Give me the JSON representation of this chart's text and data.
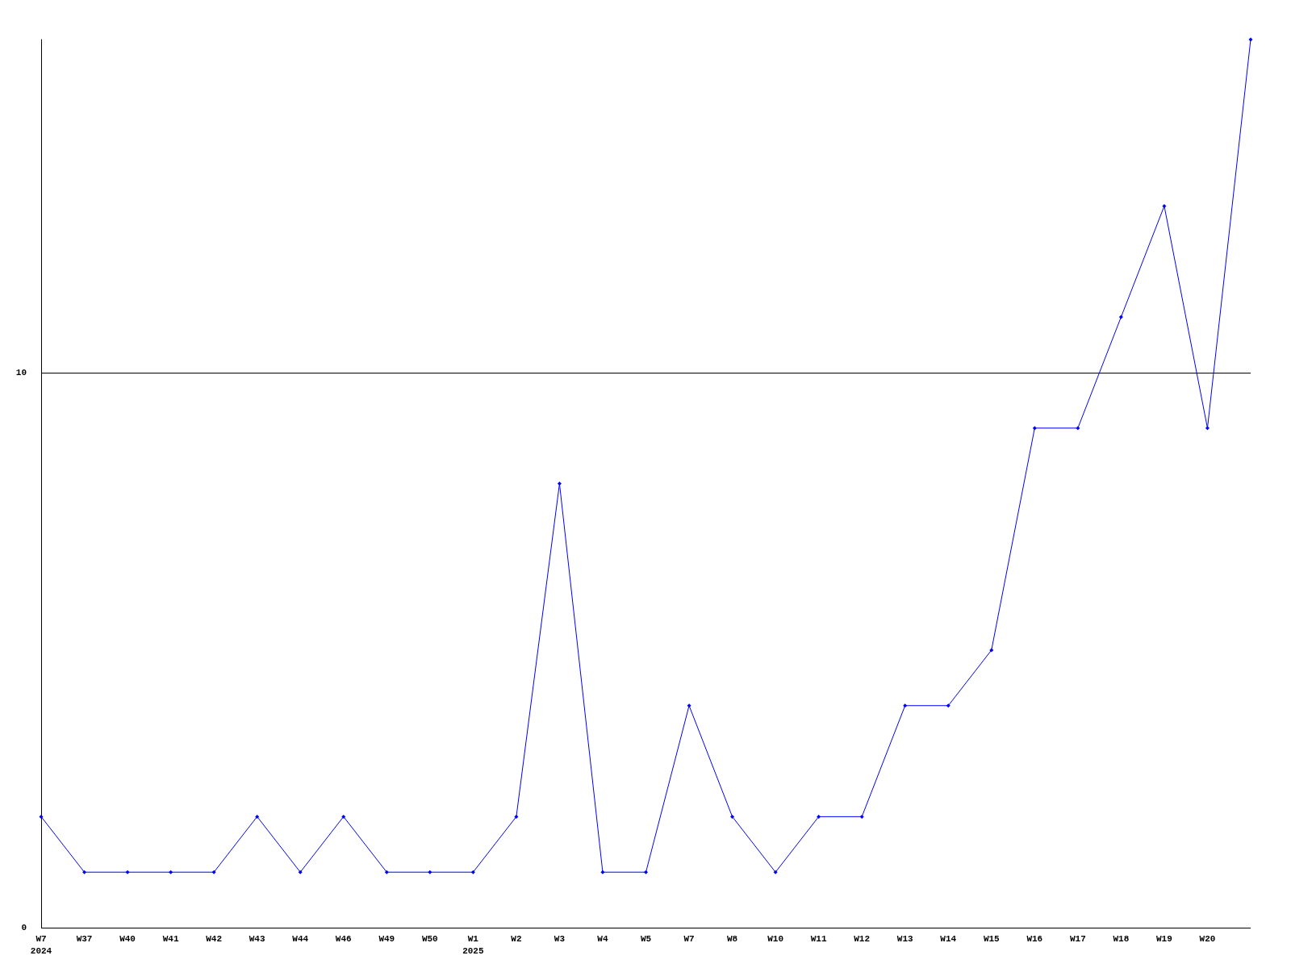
{
  "chart_data": {
    "type": "line",
    "categories": [
      "W7\n2024",
      "W37",
      "W40",
      "W41",
      "W42",
      "W43",
      "W44",
      "W46",
      "W49",
      "W50",
      "W1\n2025",
      "W2",
      "W3",
      "W4",
      "W5",
      "W7",
      "W8",
      "W10",
      "W11",
      "W12",
      "W13",
      "W14",
      "W15",
      "W16",
      "W17",
      "W18",
      "W19",
      "W20",
      null
    ],
    "series": [
      {
        "color": "#0000ff",
        "values": [
          2,
          1,
          1,
          1,
          1,
          2,
          1,
          2,
          1,
          1,
          1,
          2,
          8,
          1,
          1,
          4,
          2,
          1,
          2,
          2,
          4,
          4,
          5,
          9,
          9,
          11,
          13,
          9,
          16
        ]
      }
    ],
    "ylim": [
      0,
      16
    ],
    "yticks": [
      0,
      10
    ],
    "grid": "y",
    "marker": "diamond",
    "line_style": "solid"
  }
}
